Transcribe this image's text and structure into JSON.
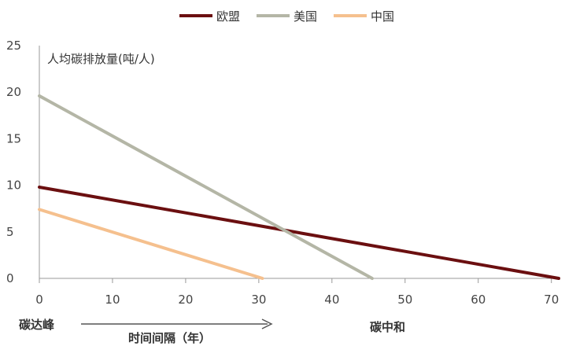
{
  "chart_data": {
    "type": "line",
    "ylabel": "人均碳排放量(吨/人)",
    "xlim": [
      0,
      71
    ],
    "ylim": [
      0,
      25
    ],
    "x_ticks": [
      0,
      10,
      20,
      30,
      40,
      50,
      60,
      70
    ],
    "y_ticks": [
      0,
      5,
      10,
      15,
      20,
      25
    ],
    "grid": false,
    "legend_position": "top-center",
    "series": [
      {
        "name": "欧盟",
        "color": "#6b0f10",
        "points": [
          [
            0,
            9.8
          ],
          [
            71,
            0
          ]
        ]
      },
      {
        "name": "美国",
        "color": "#b4b6a6",
        "points": [
          [
            0,
            19.6
          ],
          [
            45.5,
            0
          ]
        ]
      },
      {
        "name": "中国",
        "color": "#f5c08e",
        "points": [
          [
            0,
            7.4
          ],
          [
            30.5,
            0
          ]
        ]
      }
    ],
    "annotations": {
      "start": "碳达峰",
      "interval": "时间间隔（年）",
      "end": "碳中和"
    }
  }
}
